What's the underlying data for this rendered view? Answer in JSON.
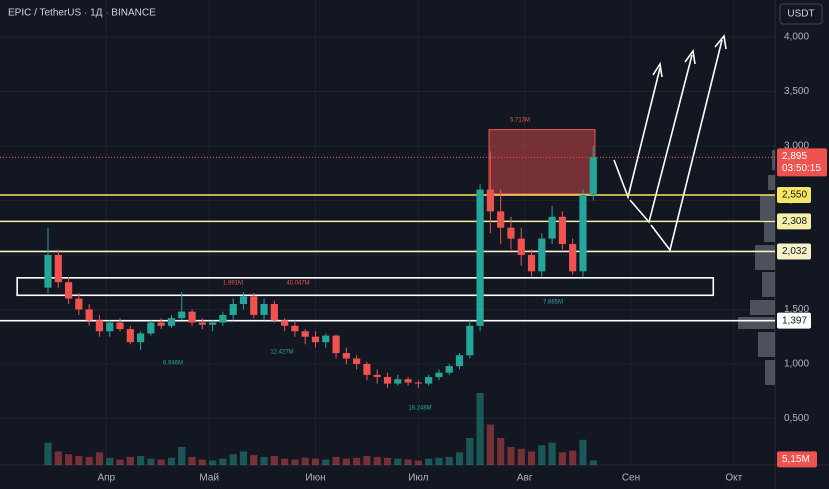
{
  "chart_data": {
    "type": "candlestick",
    "title": "EPIC / TetherUS · 1Д · BINANCE",
    "currency": "USDT",
    "x": [
      14,
      17,
      20,
      23,
      26,
      29,
      32,
      35,
      38,
      41,
      44,
      47,
      50,
      53,
      56,
      59,
      62,
      65,
      68,
      71,
      74,
      77,
      80,
      83,
      86,
      89,
      92,
      95,
      98,
      101,
      104,
      107,
      110,
      113,
      116,
      119,
      122,
      125,
      128,
      131,
      134,
      137,
      140,
      143,
      146,
      149,
      152,
      155,
      158,
      161,
      164,
      167,
      170,
      173
    ],
    "open": [
      1700,
      2000,
      1750,
      1600,
      1500,
      1400,
      1300,
      1380,
      1320,
      1200,
      1280,
      1380,
      1350,
      1420,
      1480,
      1380,
      1360,
      1380,
      1450,
      1550,
      1620,
      1450,
      1550,
      1400,
      1350,
      1300,
      1250,
      1200,
      1260,
      1100,
      1050,
      1000,
      900,
      880,
      820,
      860,
      830,
      820,
      880,
      920,
      980,
      1080,
      1350,
      2600,
      2400,
      2250,
      2150,
      2000,
      1850,
      2150,
      2350,
      2100,
      1850,
      2550
    ],
    "high": [
      2250,
      2050,
      1800,
      1650,
      1550,
      1450,
      1400,
      1420,
      1350,
      1300,
      1400,
      1420,
      1450,
      1660,
      1500,
      1420,
      1400,
      1480,
      1600,
      1660,
      1650,
      1600,
      1580,
      1420,
      1400,
      1320,
      1300,
      1280,
      1270,
      1150,
      1080,
      1020,
      950,
      920,
      900,
      880,
      850,
      900,
      950,
      1000,
      1100,
      1400,
      2650,
      2950,
      2600,
      2350,
      2250,
      2050,
      2200,
      2450,
      2400,
      2150,
      2600,
      3000
    ],
    "low": [
      1650,
      1700,
      1550,
      1450,
      1350,
      1250,
      1250,
      1300,
      1180,
      1130,
      1260,
      1320,
      1330,
      1400,
      1350,
      1320,
      1300,
      1350,
      1400,
      1500,
      1420,
      1400,
      1380,
      1300,
      1250,
      1180,
      1150,
      1150,
      1050,
      1000,
      950,
      850,
      820,
      780,
      800,
      800,
      780,
      800,
      850,
      900,
      950,
      1050,
      1300,
      2200,
      2100,
      2050,
      1900,
      1800,
      1800,
      2100,
      2050,
      1820,
      1800,
      2500
    ],
    "close": [
      2000,
      1750,
      1600,
      1500,
      1400,
      1300,
      1380,
      1320,
      1200,
      1280,
      1380,
      1350,
      1420,
      1480,
      1380,
      1360,
      1380,
      1450,
      1550,
      1620,
      1450,
      1550,
      1400,
      1350,
      1300,
      1250,
      1200,
      1260,
      1100,
      1050,
      1000,
      900,
      880,
      820,
      860,
      830,
      820,
      880,
      920,
      980,
      1080,
      1350,
      2600,
      2400,
      2250,
      2150,
      2000,
      1850,
      2150,
      2350,
      2100,
      1850,
      2550,
      2895
    ],
    "volume": [
      25,
      15,
      12,
      10,
      9,
      14,
      8,
      6,
      9,
      10,
      7,
      6,
      8,
      20,
      9,
      6,
      5,
      7,
      12,
      15,
      11,
      9,
      10,
      7,
      6,
      8,
      7,
      6,
      9,
      7,
      8,
      10,
      9,
      8,
      7,
      6,
      5,
      7,
      8,
      9,
      14,
      30,
      80,
      45,
      30,
      20,
      18,
      15,
      22,
      25,
      14,
      16,
      28,
      5.15
    ],
    "up_color": "#26a69a",
    "down_color": "#ef5350",
    "xlim": [
      0,
      226
    ],
    "xticks": [
      {
        "value": 31,
        "label": "Апр"
      },
      {
        "value": 61,
        "label": "Май"
      },
      {
        "value": 92,
        "label": "Июн"
      },
      {
        "value": 122,
        "label": "Июл"
      },
      {
        "value": 153,
        "label": "Авг"
      },
      {
        "value": 184,
        "label": "Сен"
      },
      {
        "value": 214,
        "label": "Окт"
      }
    ],
    "ylim": [
      73,
      4339
    ],
    "yticks": [
      {
        "value": 500,
        "label": "0,500"
      },
      {
        "value": 1000,
        "label": "1,000"
      },
      {
        "value": 1500,
        "label": "1,500"
      },
      {
        "value": 2000,
        "label": "2,000"
      },
      {
        "value": 2500,
        "label": "2,500"
      },
      {
        "value": 3000,
        "label": "3,000"
      },
      {
        "value": 3500,
        "label": "3,500"
      },
      {
        "value": 4000,
        "label": "4,000"
      }
    ],
    "vlim": [
      0,
      100
    ],
    "levels": [
      {
        "value": 2550,
        "label": "2,550",
        "color": "#f5e663"
      },
      {
        "value": 2308,
        "label": "2,308",
        "color": "#f5f0a8"
      },
      {
        "value": 2032,
        "label": "2,032",
        "color": "#f5f0c8"
      },
      {
        "value": 1397,
        "label": "1,397",
        "color": "#ffffff"
      }
    ],
    "current_price": {
      "value": 2895,
      "label": "2,895",
      "countdown": "03:50:15"
    },
    "volume_label": "5,15M",
    "zones": [
      {
        "from": 5,
        "to": 208,
        "low": 1630,
        "high": 1790,
        "color": "#ffffff"
      },
      {
        "from": 142.6,
        "to": 173.5,
        "low": 2560,
        "high": 3150,
        "color": "#ef5350"
      }
    ],
    "annotations": [
      "5.713M",
      "1.991M",
      "40.047M",
      "6.946M",
      "12.427M",
      "18.248M",
      "7.885M"
    ]
  }
}
